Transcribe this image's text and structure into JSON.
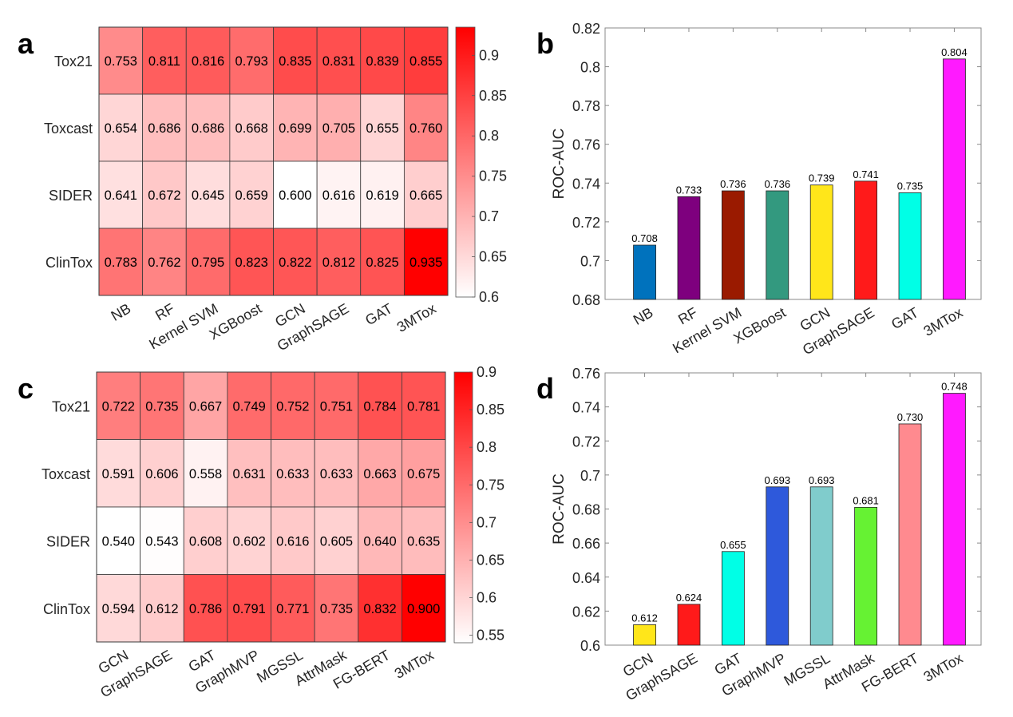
{
  "chart_data": [
    {
      "panel": "a",
      "type": "heatmap",
      "title": "",
      "rows": [
        "Tox21",
        "Toxcast",
        "SIDER",
        "ClinTox"
      ],
      "columns": [
        "NB",
        "RF",
        "Kernel SVM",
        "XGBoost",
        "GCN",
        "GraphSAGE",
        "GAT",
        "3MTox"
      ],
      "values": [
        [
          0.753,
          0.811,
          0.816,
          0.793,
          0.835,
          0.831,
          0.839,
          0.855
        ],
        [
          0.654,
          0.686,
          0.686,
          0.668,
          0.699,
          0.705,
          0.655,
          0.76
        ],
        [
          0.641,
          0.672,
          0.645,
          0.659,
          0.6,
          0.616,
          0.619,
          0.665
        ],
        [
          0.783,
          0.762,
          0.795,
          0.823,
          0.822,
          0.812,
          0.825,
          0.935
        ]
      ],
      "value_labels": [
        [
          "0.753",
          "0.811",
          "0.816",
          "0.793",
          "0.835",
          "0.831",
          "0.839",
          "0.855"
        ],
        [
          "0.654",
          "0.686",
          "0.686",
          "0.668",
          "0.699",
          "0.705",
          "0.655",
          "0.760"
        ],
        [
          "0.641",
          "0.672",
          "0.645",
          "0.659",
          "0.600",
          "0.616",
          "0.619",
          "0.665"
        ],
        [
          "0.783",
          "0.762",
          "0.795",
          "0.823",
          "0.822",
          "0.812",
          "0.825",
          "0.935"
        ]
      ],
      "colorbar": {
        "range": [
          0.6,
          0.935
        ],
        "ticks": [
          0.6,
          0.65,
          0.7,
          0.75,
          0.8,
          0.85,
          0.9
        ],
        "tick_labels": [
          "0.6",
          "0.65",
          "0.7",
          "0.75",
          "0.8",
          "0.85",
          "0.9"
        ],
        "low_color": "#ffffff",
        "high_color": "#ff0000"
      }
    },
    {
      "panel": "b",
      "type": "bar",
      "title": "",
      "xlabel": "",
      "ylabel": "ROC-AUC",
      "categories": [
        "NB",
        "RF",
        "Kernel SVM",
        "XGBoost",
        "GCN",
        "GraphSAGE",
        "GAT",
        "3MTox"
      ],
      "values": [
        0.708,
        0.733,
        0.736,
        0.736,
        0.739,
        0.741,
        0.735,
        0.804
      ],
      "value_labels": [
        "0.708",
        "0.733",
        "0.736",
        "0.736",
        "0.739",
        "0.741",
        "0.735",
        "0.804"
      ],
      "colors": [
        "#0072BD",
        "#7E007E",
        "#9A1A00",
        "#33997F",
        "#FFE61A",
        "#FF1A1A",
        "#00FFE6",
        "#FF1AFF"
      ],
      "ylim": [
        0.68,
        0.82
      ],
      "yticks": [
        0.68,
        0.7,
        0.72,
        0.74,
        0.76,
        0.78,
        0.8,
        0.82
      ],
      "ytick_labels": [
        "0.68",
        "0.7",
        "0.72",
        "0.74",
        "0.76",
        "0.78",
        "0.8",
        "0.82"
      ],
      "grid": false,
      "legend": "none"
    },
    {
      "panel": "c",
      "type": "heatmap",
      "title": "",
      "rows": [
        "Tox21",
        "Toxcast",
        "SIDER",
        "ClinTox"
      ],
      "columns": [
        "GCN",
        "GraphSAGE",
        "GAT",
        "GraphMVP",
        "MGSSL",
        "AttrMask",
        "FG-BERT",
        "3MTox"
      ],
      "values": [
        [
          0.722,
          0.735,
          0.667,
          0.749,
          0.752,
          0.751,
          0.784,
          0.781
        ],
        [
          0.591,
          0.606,
          0.558,
          0.631,
          0.633,
          0.633,
          0.663,
          0.675
        ],
        [
          0.54,
          0.543,
          0.608,
          0.602,
          0.616,
          0.605,
          0.64,
          0.635
        ],
        [
          0.594,
          0.612,
          0.786,
          0.791,
          0.771,
          0.735,
          0.832,
          0.9
        ]
      ],
      "value_labels": [
        [
          "0.722",
          "0.735",
          "0.667",
          "0.749",
          "0.752",
          "0.751",
          "0.784",
          "0.781"
        ],
        [
          "0.591",
          "0.606",
          "0.558",
          "0.631",
          "0.633",
          "0.633",
          "0.663",
          "0.675"
        ],
        [
          "0.540",
          "0.543",
          "0.608",
          "0.602",
          "0.616",
          "0.605",
          "0.640",
          "0.635"
        ],
        [
          "0.594",
          "0.612",
          "0.786",
          "0.791",
          "0.771",
          "0.735",
          "0.832",
          "0.900"
        ]
      ],
      "colorbar": {
        "range": [
          0.54,
          0.9
        ],
        "ticks": [
          0.55,
          0.6,
          0.65,
          0.7,
          0.75,
          0.8,
          0.85,
          0.9
        ],
        "tick_labels": [
          "0.55",
          "0.6",
          "0.65",
          "0.7",
          "0.75",
          "0.8",
          "0.85",
          "0.9"
        ],
        "low_color": "#ffffff",
        "high_color": "#ff0000"
      }
    },
    {
      "panel": "d",
      "type": "bar",
      "title": "",
      "xlabel": "",
      "ylabel": "ROC-AUC",
      "categories": [
        "GCN",
        "GraphSAGE",
        "GAT",
        "GraphMVP",
        "MGSSL",
        "AttrMask",
        "FG-BERT",
        "3MTox"
      ],
      "values": [
        0.612,
        0.624,
        0.655,
        0.693,
        0.693,
        0.681,
        0.73,
        0.748
      ],
      "value_labels": [
        "0.612",
        "0.624",
        "0.655",
        "0.693",
        "0.693",
        "0.681",
        "0.730",
        "0.748"
      ],
      "colors": [
        "#FFE61A",
        "#FF1A1A",
        "#00FFE6",
        "#2E59DB",
        "#80CCCC",
        "#66F233",
        "#FF8A8F",
        "#FF1AFF"
      ],
      "ylim": [
        0.6,
        0.76
      ],
      "yticks": [
        0.6,
        0.62,
        0.64,
        0.66,
        0.68,
        0.7,
        0.72,
        0.74,
        0.76
      ],
      "ytick_labels": [
        "0.6",
        "0.62",
        "0.64",
        "0.66",
        "0.68",
        "0.7",
        "0.72",
        "0.74",
        "0.76"
      ],
      "grid": false,
      "legend": "none"
    }
  ],
  "panel_letters": [
    "a",
    "b",
    "c",
    "d"
  ]
}
